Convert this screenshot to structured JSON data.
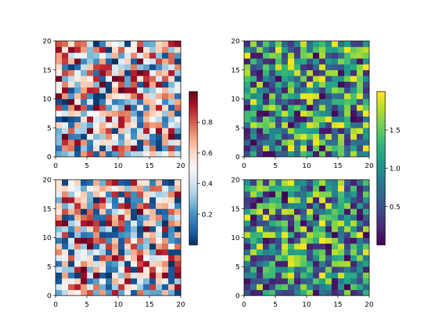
{
  "chart_data": [
    {
      "type": "heatmap",
      "panel": "top-left",
      "colormap": "RdBu_r",
      "grid_size": [
        20,
        20
      ],
      "value_range": [
        0,
        1
      ],
      "xlim": [
        0,
        20
      ],
      "ylim": [
        0,
        20
      ],
      "xticks": [
        "0",
        "5",
        "10",
        "15",
        "20"
      ],
      "yticks": [
        "0",
        "5",
        "10",
        "15",
        "20"
      ],
      "shared_colorbar": "left-column",
      "seed": 11
    },
    {
      "type": "heatmap",
      "panel": "bottom-left",
      "colormap": "RdBu_r",
      "grid_size": [
        20,
        20
      ],
      "value_range": [
        0,
        1
      ],
      "xlim": [
        0,
        20
      ],
      "ylim": [
        0,
        20
      ],
      "xticks": [
        "0",
        "5",
        "10",
        "15",
        "20"
      ],
      "yticks": [
        "0",
        "5",
        "10",
        "15",
        "20"
      ],
      "shared_colorbar": "left-column",
      "seed": 23
    },
    {
      "type": "heatmap",
      "panel": "top-right",
      "colormap": "viridis",
      "grid_size": [
        20,
        20
      ],
      "value_range": [
        0,
        2
      ],
      "xlim": [
        0,
        20
      ],
      "ylim": [
        0,
        20
      ],
      "xticks": [
        "0",
        "5",
        "10",
        "15",
        "20"
      ],
      "yticks": [
        "0",
        "5",
        "10",
        "15",
        "20"
      ],
      "shared_colorbar": "right-column",
      "seed": 37
    },
    {
      "type": "heatmap",
      "panel": "bottom-right",
      "colormap": "viridis",
      "grid_size": [
        20,
        20
      ],
      "value_range": [
        0,
        2
      ],
      "xlim": [
        0,
        20
      ],
      "ylim": [
        0,
        20
      ],
      "xticks": [
        "0",
        "5",
        "10",
        "15",
        "20"
      ],
      "yticks": [
        "0",
        "5",
        "10",
        "15",
        "20"
      ],
      "shared_colorbar": "right-column",
      "seed": 53
    }
  ],
  "colorbars": {
    "left": {
      "colormap": "RdBu_r",
      "range": [
        0,
        1
      ],
      "ticks": [
        0.2,
        0.4,
        0.6,
        0.8
      ],
      "tick_labels": [
        "0.2",
        "0.4",
        "0.6",
        "0.8"
      ]
    },
    "right": {
      "colormap": "viridis",
      "range": [
        0,
        2
      ],
      "ticks": [
        0.5,
        1.0,
        1.5
      ],
      "tick_labels": [
        "0.5",
        "1.0",
        "1.5"
      ]
    }
  },
  "colors": {
    "RdBu_r": [
      "#053061",
      "#2166ac",
      "#4393c3",
      "#92c5de",
      "#d1e5f0",
      "#f7f7f7",
      "#fddbc7",
      "#f4a582",
      "#d6604d",
      "#b2182b",
      "#67001f"
    ],
    "viridis": [
      "#440154",
      "#482878",
      "#3e4989",
      "#31688e",
      "#26828e",
      "#1f9e89",
      "#35b779",
      "#6ece58",
      "#b5de2b",
      "#fde725"
    ]
  }
}
